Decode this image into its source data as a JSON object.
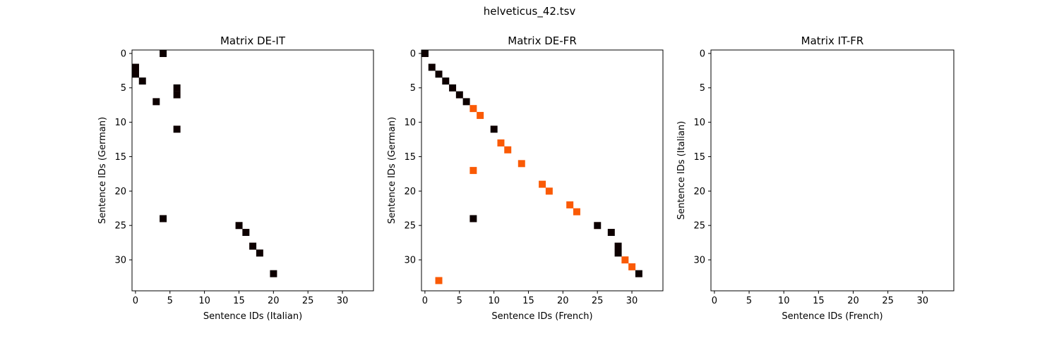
{
  "figure": {
    "suptitle": "helveticus_42.tsv"
  },
  "chart_data": [
    {
      "type": "heatmap",
      "title": "Matrix DE-IT",
      "xlabel": "Sentence IDs (Italian)",
      "ylabel": "Sentence IDs (German)",
      "xlim": [
        -0.5,
        34.5
      ],
      "ylim": [
        34.5,
        -0.5
      ],
      "xticks": [
        0,
        5,
        10,
        15,
        20,
        25,
        30
      ],
      "yticks": [
        0,
        5,
        10,
        15,
        20,
        25,
        30
      ],
      "grid": false,
      "cells": [
        {
          "x": 4,
          "y": 0,
          "color": "#0d0000"
        },
        {
          "x": 0,
          "y": 2,
          "color": "#0d0000"
        },
        {
          "x": 0,
          "y": 3,
          "color": "#0d0000"
        },
        {
          "x": 1,
          "y": 4,
          "color": "#0d0000"
        },
        {
          "x": 6,
          "y": 5,
          "color": "#0d0000"
        },
        {
          "x": 6,
          "y": 6,
          "color": "#0d0000"
        },
        {
          "x": 3,
          "y": 7,
          "color": "#0d0000"
        },
        {
          "x": 6,
          "y": 11,
          "color": "#0d0000"
        },
        {
          "x": 4,
          "y": 24,
          "color": "#0d0000"
        },
        {
          "x": 15,
          "y": 25,
          "color": "#0d0000"
        },
        {
          "x": 16,
          "y": 26,
          "color": "#0d0000"
        },
        {
          "x": 17,
          "y": 28,
          "color": "#0d0000"
        },
        {
          "x": 18,
          "y": 29,
          "color": "#0d0000"
        },
        {
          "x": 20,
          "y": 32,
          "color": "#0d0000"
        }
      ]
    },
    {
      "type": "heatmap",
      "title": "Matrix DE-FR",
      "xlabel": "Sentence IDs (French)",
      "ylabel": "Sentence IDs (German)",
      "xlim": [
        -0.5,
        34.5
      ],
      "ylim": [
        34.5,
        -0.5
      ],
      "xticks": [
        0,
        5,
        10,
        15,
        20,
        25,
        30
      ],
      "yticks": [
        0,
        5,
        10,
        15,
        20,
        25,
        30
      ],
      "grid": false,
      "cells": [
        {
          "x": 0,
          "y": 0,
          "color": "#0d0000"
        },
        {
          "x": 1,
          "y": 2,
          "color": "#0d0000"
        },
        {
          "x": 2,
          "y": 3,
          "color": "#0d0000"
        },
        {
          "x": 3,
          "y": 4,
          "color": "#0d0000"
        },
        {
          "x": 4,
          "y": 5,
          "color": "#0d0000"
        },
        {
          "x": 5,
          "y": 6,
          "color": "#0d0000"
        },
        {
          "x": 6,
          "y": 7,
          "color": "#0d0000"
        },
        {
          "x": 7,
          "y": 8,
          "color": "#fa5a05"
        },
        {
          "x": 8,
          "y": 9,
          "color": "#fa5a05"
        },
        {
          "x": 10,
          "y": 11,
          "color": "#0d0000"
        },
        {
          "x": 11,
          "y": 13,
          "color": "#fa5a05"
        },
        {
          "x": 12,
          "y": 14,
          "color": "#fa5a05"
        },
        {
          "x": 14,
          "y": 16,
          "color": "#fa5a05"
        },
        {
          "x": 7,
          "y": 17,
          "color": "#fa5a05"
        },
        {
          "x": 17,
          "y": 19,
          "color": "#fa5a05"
        },
        {
          "x": 18,
          "y": 20,
          "color": "#fa5a05"
        },
        {
          "x": 21,
          "y": 22,
          "color": "#fa5a05"
        },
        {
          "x": 22,
          "y": 23,
          "color": "#fa5a05"
        },
        {
          "x": 7,
          "y": 24,
          "color": "#0d0000"
        },
        {
          "x": 25,
          "y": 25,
          "color": "#0d0000"
        },
        {
          "x": 27,
          "y": 26,
          "color": "#0d0000"
        },
        {
          "x": 28,
          "y": 28,
          "color": "#0d0000"
        },
        {
          "x": 28,
          "y": 29,
          "color": "#0d0000"
        },
        {
          "x": 29,
          "y": 30,
          "color": "#fa5a05"
        },
        {
          "x": 30,
          "y": 31,
          "color": "#fa5a05"
        },
        {
          "x": 31,
          "y": 32,
          "color": "#0d0000"
        },
        {
          "x": 2,
          "y": 33,
          "color": "#fa5a05"
        }
      ]
    },
    {
      "type": "heatmap",
      "title": "Matrix IT-FR",
      "xlabel": "Sentence IDs (French)",
      "ylabel": "Sentence IDs (Italian)",
      "xlim": [
        -0.5,
        34.5
      ],
      "ylim": [
        34.5,
        -0.5
      ],
      "xticks": [
        0,
        5,
        10,
        15,
        20,
        25,
        30
      ],
      "yticks": [
        0,
        5,
        10,
        15,
        20,
        25,
        30
      ],
      "grid": false,
      "cells": []
    }
  ]
}
